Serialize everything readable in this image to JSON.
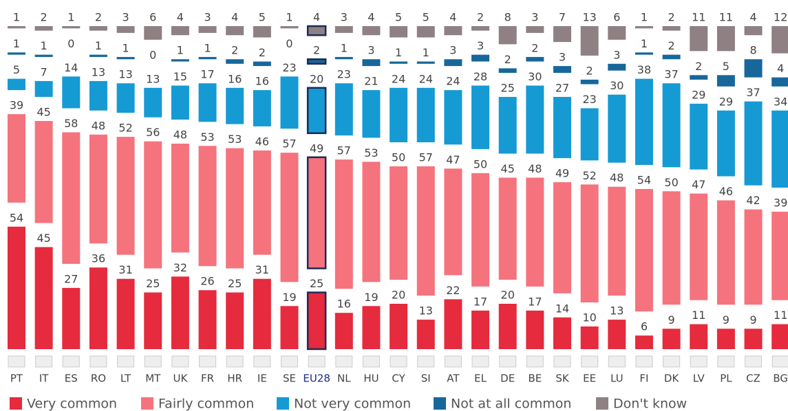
{
  "chart_data": {
    "type": "stacked-bar-separated",
    "categories": [
      "PT",
      "IT",
      "ES",
      "RO",
      "LT",
      "MT",
      "UK",
      "FR",
      "HR",
      "IE",
      "SE",
      "EU28",
      "NL",
      "HU",
      "CY",
      "SI",
      "AT",
      "EL",
      "DE",
      "BE",
      "SK",
      "EE",
      "LU",
      "FI",
      "DK",
      "LV",
      "PL",
      "CZ",
      "BG"
    ],
    "highlight": "EU28",
    "series": [
      {
        "name": "Very common",
        "color": "#e52b3d",
        "values": [
          54,
          45,
          27,
          36,
          31,
          25,
          32,
          26,
          25,
          31,
          19,
          25,
          16,
          19,
          20,
          13,
          22,
          17,
          20,
          17,
          14,
          10,
          13,
          6,
          9,
          11,
          9,
          9,
          11
        ]
      },
      {
        "name": "Fairly common",
        "color": "#f5737d",
        "values": [
          39,
          45,
          58,
          48,
          52,
          56,
          48,
          53,
          53,
          46,
          57,
          49,
          57,
          53,
          50,
          57,
          47,
          50,
          45,
          48,
          49,
          52,
          48,
          54,
          50,
          47,
          46,
          42,
          39
        ]
      },
      {
        "name": "Not very common",
        "color": "#169ad4",
        "values": [
          5,
          7,
          14,
          13,
          13,
          13,
          15,
          17,
          16,
          16,
          23,
          20,
          23,
          21,
          24,
          24,
          24,
          28,
          25,
          30,
          27,
          23,
          30,
          38,
          37,
          29,
          29,
          37,
          34
        ]
      },
      {
        "name": "Not at all common",
        "color": "#17679b",
        "values": [
          1,
          1,
          0,
          1,
          1,
          0,
          1,
          1,
          2,
          2,
          0,
          2,
          1,
          3,
          1,
          1,
          3,
          3,
          2,
          2,
          3,
          2,
          3,
          1,
          2,
          2,
          5,
          8,
          4
        ]
      },
      {
        "name": "Don't know",
        "color": "#8e8083",
        "values": [
          1,
          2,
          1,
          2,
          3,
          6,
          4,
          3,
          4,
          5,
          1,
          4,
          3,
          4,
          5,
          5,
          4,
          2,
          8,
          3,
          7,
          13,
          6,
          1,
          2,
          11,
          11,
          4,
          12
        ]
      }
    ]
  }
}
